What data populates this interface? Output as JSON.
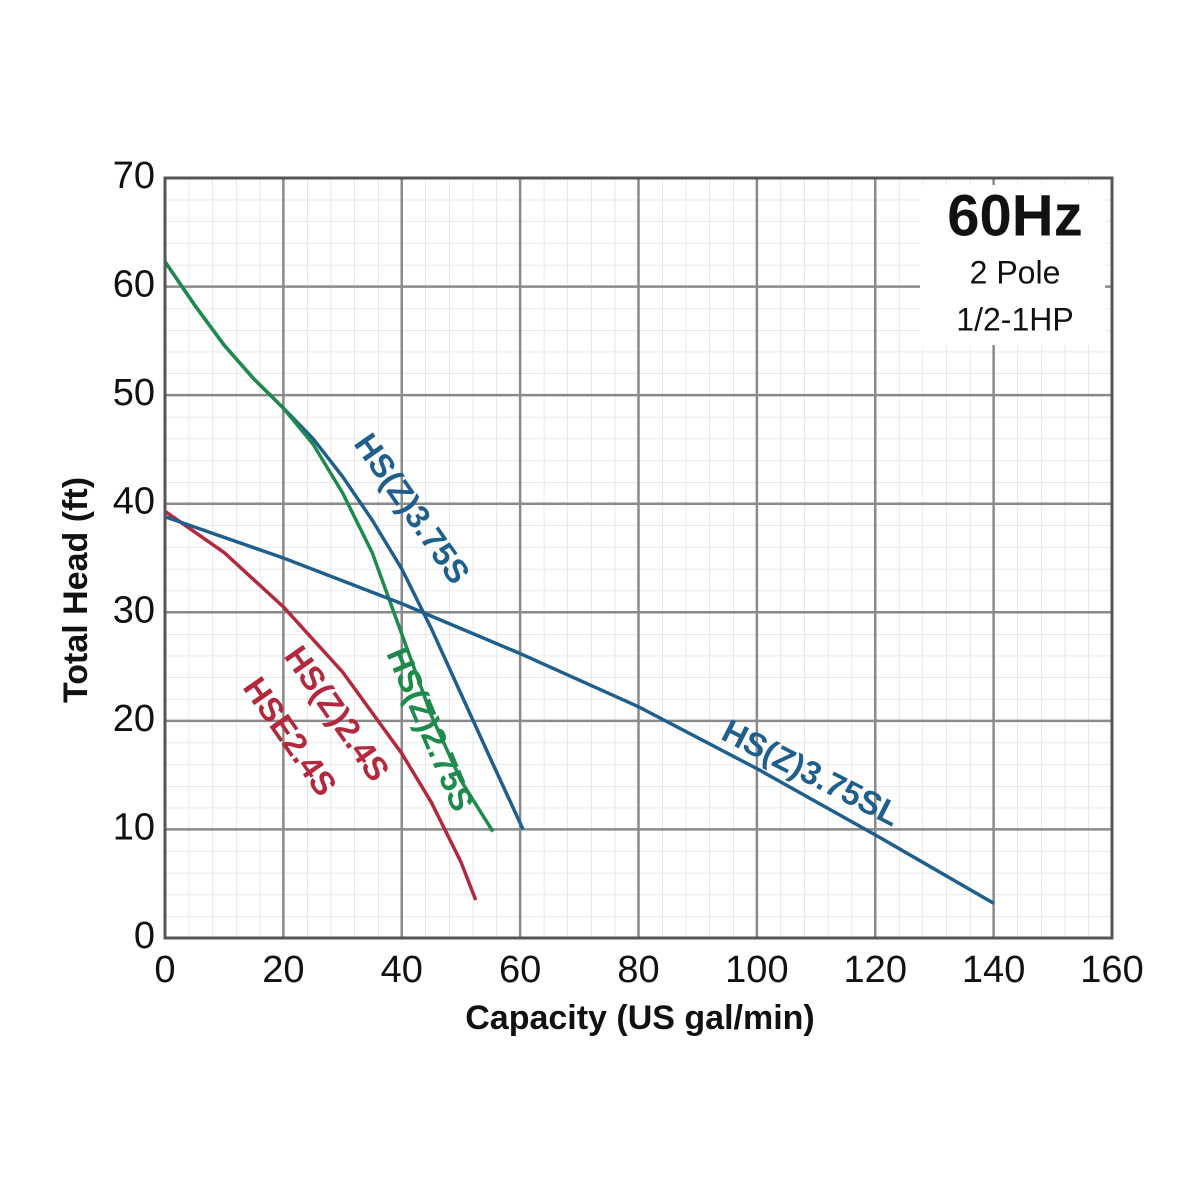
{
  "chart_data": {
    "type": "line",
    "xlabel": "Capacity (US gal/min)",
    "ylabel": "Total Head (ft)",
    "annotation": {
      "title": "60Hz",
      "lines": [
        "2 Pole",
        "1/2-1HP"
      ]
    },
    "xlim": [
      0,
      160
    ],
    "ylim": [
      0,
      70
    ],
    "xticks": [
      0,
      20,
      40,
      60,
      80,
      100,
      120,
      140,
      160
    ],
    "yticks": [
      0,
      10,
      20,
      30,
      40,
      50,
      60,
      70
    ],
    "grid": true,
    "series": [
      {
        "name": "HS(Z)3.75S",
        "color": "#1f5f8b",
        "x": [
          0,
          5,
          10,
          15,
          20,
          25,
          30,
          35,
          40,
          45,
          50,
          55,
          60.5
        ],
        "values": [
          62.3,
          58.3,
          54.6,
          51.5,
          48.8,
          46,
          42.5,
          38.5,
          34,
          28.5,
          22.5,
          16.5,
          10
        ]
      },
      {
        "name": "HS(Z)2.75S",
        "color": "#1e8a4c",
        "x": [
          0,
          5,
          10,
          15,
          20,
          25,
          30,
          35,
          40,
          45,
          50,
          55.4
        ],
        "values": [
          62.3,
          58.3,
          54.6,
          51.5,
          48.8,
          45.5,
          41,
          35.5,
          28,
          20.5,
          14.5,
          9.8
        ]
      },
      {
        "name": "HS(Z)2.4S",
        "alt_name": "HSE2.4S",
        "color": "#b3283c",
        "x": [
          0,
          10,
          20,
          30,
          40,
          45,
          50,
          52.5
        ],
        "values": [
          39.3,
          35.5,
          30.5,
          24.5,
          17,
          12.5,
          7,
          3.5
        ]
      },
      {
        "name": "HS(Z)3.75SL",
        "color": "#1f5f8b",
        "x": [
          0,
          20,
          40,
          60,
          80,
          100,
          120,
          140
        ],
        "values": [
          38.8,
          35,
          30.8,
          26.2,
          21.3,
          15.6,
          9.5,
          3.2
        ]
      }
    ]
  }
}
